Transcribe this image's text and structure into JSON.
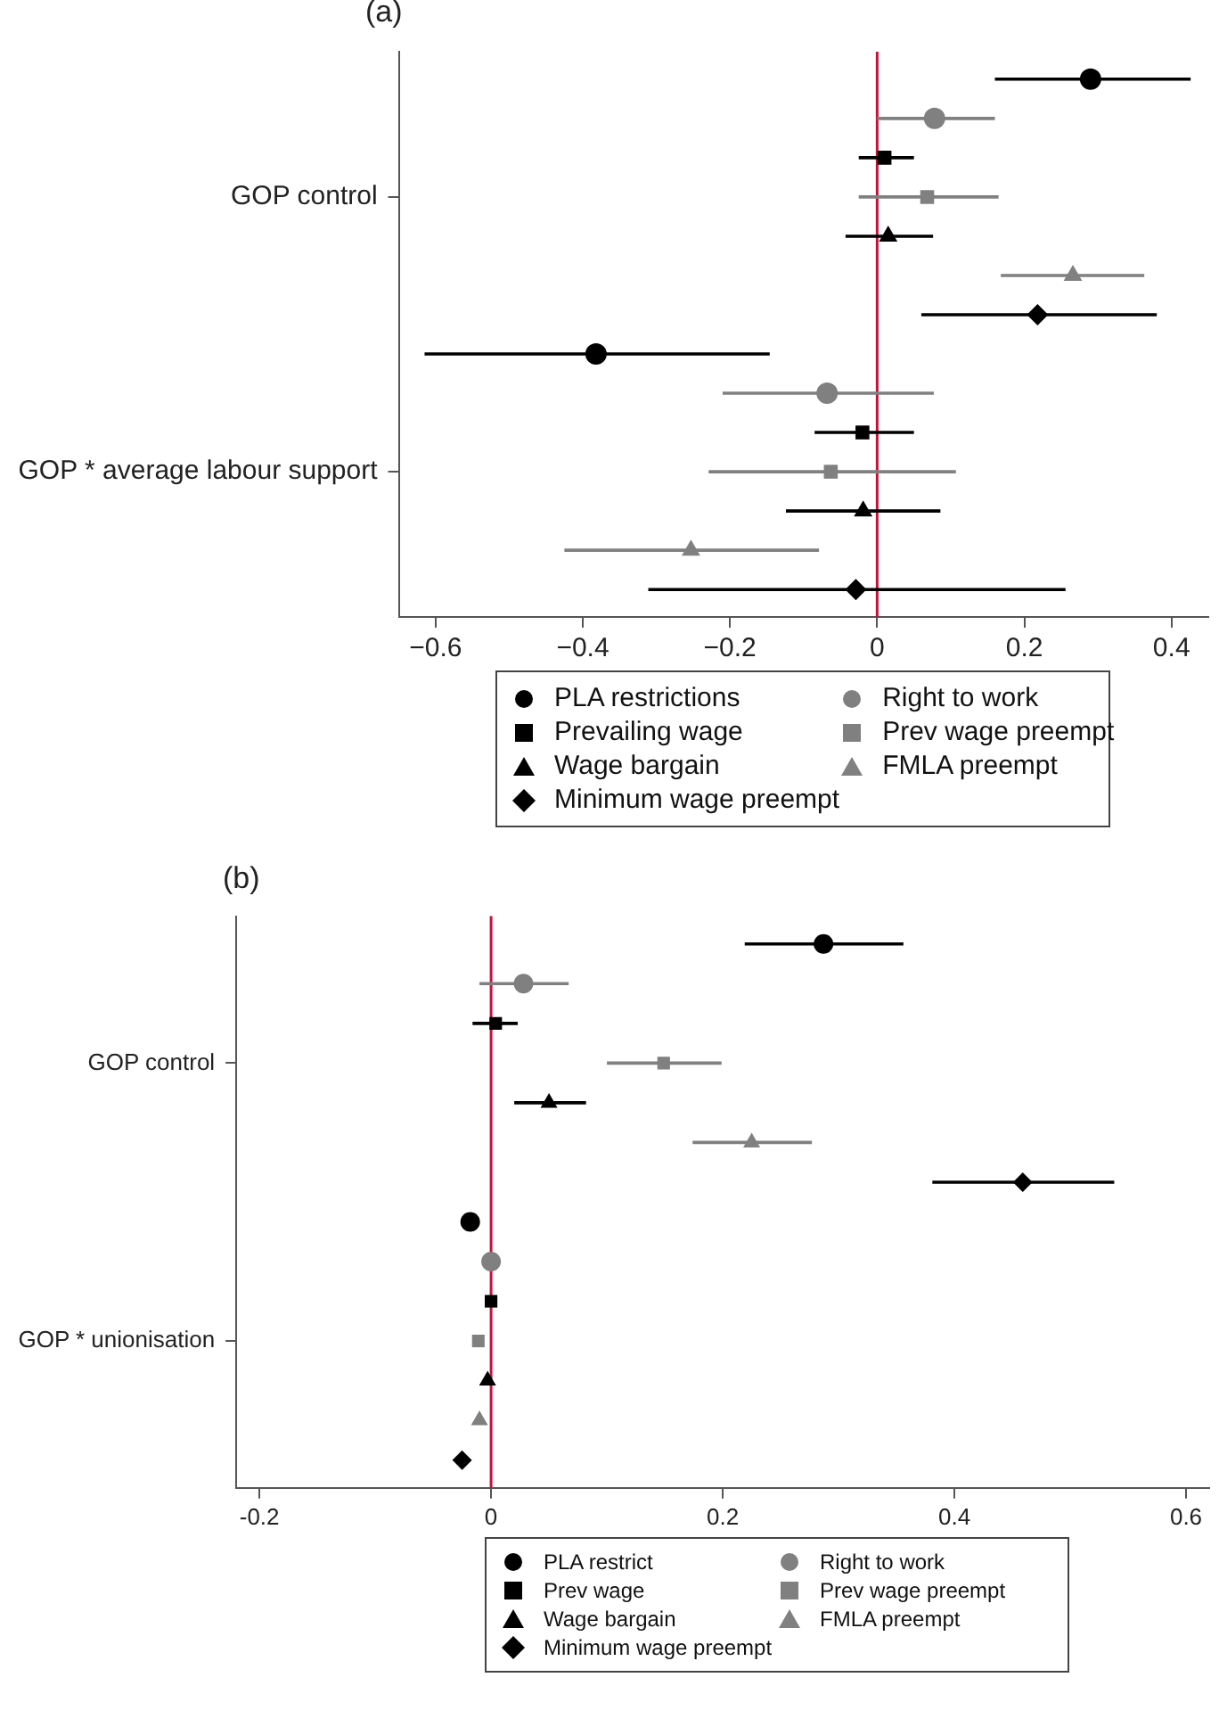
{
  "chart_data": [
    {
      "type": "scatter",
      "title": "(a)",
      "orientation": "horizontal",
      "categories": [
        "GOP control",
        "GOP * average labour support"
      ],
      "xlim": [
        -0.65,
        0.45
      ],
      "xticks": [
        {
          "value": -0.6,
          "label": "−0.6"
        },
        {
          "value": -0.4,
          "label": "−0.4"
        },
        {
          "value": -0.2,
          "label": "−0.2"
        },
        0,
        0.2,
        0.4
      ],
      "ref_lines": [
        {
          "axis": "x",
          "value": 0,
          "color": "#c0143c"
        }
      ],
      "legend": "bottom",
      "series": [
        {
          "name": "PLA restrictions",
          "color": "#000000",
          "marker": "circle",
          "values": [
            0.29,
            -0.382
          ],
          "errors": [
            [
              0.16,
              0.426
            ],
            [
              -0.615,
              -0.146
            ]
          ]
        },
        {
          "name": "Right to work",
          "color": "#808080",
          "marker": "circle",
          "values": [
            0.078,
            -0.068
          ],
          "errors": [
            [
              0.0,
              0.16
            ],
            [
              -0.21,
              0.077
            ]
          ]
        },
        {
          "name": "Prevailing wage",
          "color": "#000000",
          "marker": "square",
          "values": [
            0.01,
            -0.02
          ],
          "errors": [
            [
              -0.025,
              0.05
            ],
            [
              -0.085,
              0.05
            ]
          ]
        },
        {
          "name": "Prev wage preempt",
          "color": "#808080",
          "marker": "square",
          "values": [
            0.068,
            -0.063
          ],
          "errors": [
            [
              -0.025,
              0.165
            ],
            [
              -0.229,
              0.107
            ]
          ]
        },
        {
          "name": "Wage bargain",
          "color": "#000000",
          "marker": "triangle",
          "values": [
            0.015,
            -0.019
          ],
          "errors": [
            [
              -0.043,
              0.076
            ],
            [
              -0.124,
              0.086
            ]
          ]
        },
        {
          "name": "FMLA preempt",
          "color": "#808080",
          "marker": "triangle",
          "values": [
            0.266,
            -0.253
          ],
          "errors": [
            [
              0.168,
              0.363
            ],
            [
              -0.425,
              -0.079
            ]
          ]
        },
        {
          "name": "Minimum wage preempt",
          "color": "#000000",
          "marker": "diamond",
          "values": [
            0.218,
            -0.029
          ],
          "errors": [
            [
              0.06,
              0.38
            ],
            [
              -0.311,
              0.256
            ]
          ]
        }
      ]
    },
    {
      "type": "scatter",
      "title": "(b)",
      "orientation": "horizontal",
      "categories": [
        "GOP control",
        "GOP * unionisation"
      ],
      "xlim": [
        -0.22,
        0.62
      ],
      "xticks": [
        -0.2,
        0,
        0.2,
        0.4,
        0.6
      ],
      "ref_lines": [
        {
          "axis": "x",
          "value": 0,
          "color": "#c0143c"
        }
      ],
      "legend": "bottom",
      "series": [
        {
          "name": "PLA restrict",
          "color": "#000000",
          "marker": "circle",
          "values": [
            0.287,
            -0.018
          ],
          "errors": [
            [
              0.219,
              0.356
            ],
            null
          ]
        },
        {
          "name": "Right to work",
          "color": "#808080",
          "marker": "circle",
          "values": [
            0.028,
            0.0
          ],
          "errors": [
            [
              -0.01,
              0.067
            ],
            null
          ]
        },
        {
          "name": "Prev wage",
          "color": "#000000",
          "marker": "square",
          "values": [
            0.004,
            0.0
          ],
          "errors": [
            [
              -0.016,
              0.023
            ],
            null
          ]
        },
        {
          "name": "Prev wage preempt",
          "color": "#808080",
          "marker": "square",
          "values": [
            0.149,
            -0.011
          ],
          "errors": [
            [
              0.1,
              0.199
            ],
            null
          ]
        },
        {
          "name": "Wage bargain",
          "color": "#000000",
          "marker": "triangle",
          "values": [
            0.05,
            -0.003
          ],
          "errors": [
            [
              0.02,
              0.082
            ],
            null
          ]
        },
        {
          "name": "FMLA preempt",
          "color": "#808080",
          "marker": "triangle",
          "values": [
            0.225,
            -0.01
          ],
          "errors": [
            [
              0.174,
              0.277
            ],
            null
          ]
        },
        {
          "name": "Minimum wage preempt",
          "color": "#000000",
          "marker": "diamond",
          "values": [
            0.459,
            -0.025
          ],
          "errors": [
            [
              0.381,
              0.538
            ],
            null
          ]
        }
      ]
    }
  ]
}
